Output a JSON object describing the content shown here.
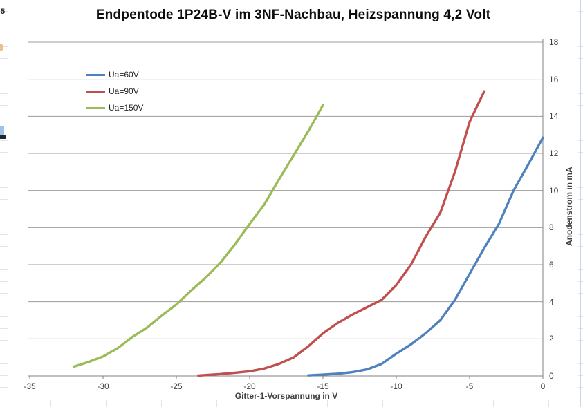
{
  "chart_data": {
    "type": "line",
    "title": "Endpentode 1P24B-V im 3NF-Nachbau, Heizspannung 4,2 Volt",
    "xlabel": "Gitter-1-Vorspannung in V",
    "ylabel": "Anodenstrom in mA",
    "xlim": [
      -35,
      0
    ],
    "ylim": [
      0,
      18
    ],
    "x_ticks": [
      -35,
      -30,
      -25,
      -20,
      -15,
      -10,
      -5,
      0
    ],
    "y_ticks": [
      0,
      2,
      4,
      6,
      8,
      10,
      12,
      14,
      16,
      18
    ],
    "grid": "horizontal",
    "grid_color": "#9c9c9c",
    "axis_color": "#808080",
    "y_axis_side": "right",
    "legend_position": "inside-top-left",
    "series": [
      {
        "name": "Ua=60V",
        "color": "#4f81bd",
        "points": [
          [
            -16,
            0.03
          ],
          [
            -15,
            0.07
          ],
          [
            -14,
            0.12
          ],
          [
            -13,
            0.2
          ],
          [
            -12,
            0.35
          ],
          [
            -11,
            0.65
          ],
          [
            -10,
            1.2
          ],
          [
            -9,
            1.7
          ],
          [
            -8,
            2.3
          ],
          [
            -7,
            3.0
          ],
          [
            -6,
            4.1
          ],
          [
            -5,
            5.5
          ],
          [
            -4,
            6.9
          ],
          [
            -3,
            8.2
          ],
          [
            -2,
            10.0
          ],
          [
            -1,
            11.4
          ],
          [
            0,
            12.85
          ]
        ]
      },
      {
        "name": "Ua=90V",
        "color": "#c0504d",
        "points": [
          [
            -23.5,
            0.02
          ],
          [
            -23,
            0.05
          ],
          [
            -22,
            0.1
          ],
          [
            -21,
            0.17
          ],
          [
            -20,
            0.25
          ],
          [
            -19,
            0.4
          ],
          [
            -18,
            0.65
          ],
          [
            -17,
            1.0
          ],
          [
            -16,
            1.6
          ],
          [
            -15,
            2.3
          ],
          [
            -14,
            2.85
          ],
          [
            -13,
            3.3
          ],
          [
            -12,
            3.7
          ],
          [
            -11,
            4.1
          ],
          [
            -10,
            4.9
          ],
          [
            -9,
            6.0
          ],
          [
            -8,
            7.5
          ],
          [
            -7,
            8.8
          ],
          [
            -6,
            11.0
          ],
          [
            -5,
            13.7
          ],
          [
            -4,
            15.35
          ]
        ]
      },
      {
        "name": "Ua=150V",
        "color": "#9bbb59",
        "points": [
          [
            -32,
            0.5
          ],
          [
            -31,
            0.75
          ],
          [
            -30,
            1.05
          ],
          [
            -29,
            1.5
          ],
          [
            -28,
            2.1
          ],
          [
            -27,
            2.6
          ],
          [
            -26,
            3.25
          ],
          [
            -25,
            3.85
          ],
          [
            -24,
            4.6
          ],
          [
            -23,
            5.3
          ],
          [
            -22,
            6.1
          ],
          [
            -21,
            7.1
          ],
          [
            -20,
            8.2
          ],
          [
            -19,
            9.25
          ],
          [
            -18,
            10.6
          ],
          [
            -17,
            11.9
          ],
          [
            -16,
            13.2
          ],
          [
            -15,
            14.6
          ]
        ]
      }
    ]
  }
}
